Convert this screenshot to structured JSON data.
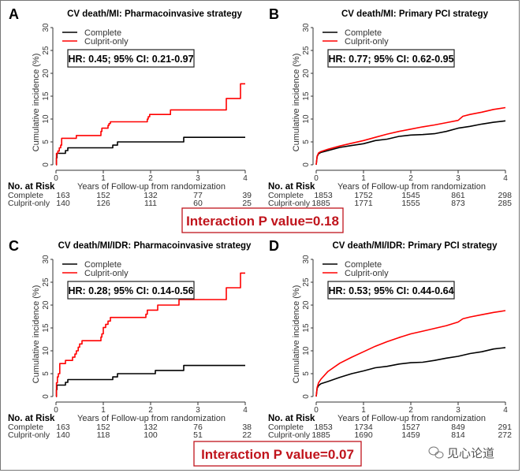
{
  "chart_data": [
    {
      "type": "line",
      "panel": "A",
      "title": "CV death/MI: Pharmacoinvasive strategy",
      "xlabel": "Years of Follow-up from randomization",
      "ylabel": "Cumulative incidence (%)",
      "xlim": [
        0,
        4
      ],
      "ylim": [
        0,
        30
      ],
      "xticks": [
        0,
        1,
        2,
        3,
        4
      ],
      "yticks": [
        0,
        5,
        10,
        15,
        20,
        25,
        30
      ],
      "step": true,
      "legend": [
        "Complete",
        "Culprit-only"
      ],
      "annotation": "HR: 0.45; 95% CI: 0.21-0.97",
      "series": [
        {
          "name": "Complete",
          "color": "#000000",
          "x": [
            0,
            0.01,
            0.02,
            0.15,
            0.2,
            0.25,
            1.2,
            1.3,
            2.7,
            4.0
          ],
          "y": [
            0,
            1.5,
            2.5,
            2.5,
            3.1,
            3.7,
            4.3,
            5.0,
            6.0,
            6.0
          ]
        },
        {
          "name": "Culprit-only",
          "color": "#ff0000",
          "x": [
            0,
            0.01,
            0.04,
            0.07,
            0.1,
            0.12,
            0.43,
            0.95,
            0.97,
            1.1,
            1.12,
            1.15,
            1.93,
            1.95,
            1.98,
            2.42,
            3.6,
            3.9,
            4.0
          ],
          "y": [
            0,
            2.5,
            3.0,
            3.7,
            4.3,
            5.8,
            6.4,
            7.3,
            8.0,
            8.6,
            9.0,
            9.4,
            10.0,
            10.5,
            11.0,
            12.0,
            14.5,
            17.7,
            17.7
          ]
        }
      ],
      "at_risk": {
        "header": "No. at Risk",
        "rows": [
          {
            "label": "Complete",
            "values": [
              163,
              152,
              132,
              77,
              39
            ]
          },
          {
            "label": "Culprit-only",
            "values": [
              140,
              126,
              111,
              60,
              25
            ]
          }
        ]
      }
    },
    {
      "type": "line",
      "panel": "B",
      "title": "CV death/MI: Primary PCI strategy",
      "xlabel": "Years of Follow-up from randomization",
      "ylabel": "Cumulative incidence (%)",
      "xlim": [
        0,
        4
      ],
      "ylim": [
        0,
        30
      ],
      "xticks": [
        0,
        1,
        2,
        3,
        4
      ],
      "yticks": [
        0,
        5,
        10,
        15,
        20,
        25,
        30
      ],
      "step": false,
      "legend": [
        "Complete",
        "Culprit-only"
      ],
      "annotation": "HR: 0.77; 95% CI: 0.62-0.95",
      "series": [
        {
          "name": "Complete",
          "color": "#000000",
          "x": [
            0,
            0.02,
            0.05,
            0.1,
            0.25,
            0.5,
            0.75,
            1.0,
            1.25,
            1.5,
            1.75,
            2.0,
            2.25,
            2.5,
            2.75,
            3.0,
            3.25,
            3.5,
            3.75,
            4.0
          ],
          "y": [
            0,
            1.8,
            2.4,
            2.7,
            3.1,
            3.8,
            4.2,
            4.6,
            5.3,
            5.6,
            6.2,
            6.5,
            6.6,
            6.8,
            7.3,
            8.0,
            8.4,
            8.9,
            9.3,
            9.6
          ]
        },
        {
          "name": "Culprit-only",
          "color": "#ff0000",
          "x": [
            0,
            0.02,
            0.05,
            0.1,
            0.25,
            0.5,
            0.75,
            1.0,
            1.25,
            1.5,
            1.75,
            2.0,
            2.25,
            2.5,
            2.75,
            3.0,
            3.1,
            3.25,
            3.5,
            3.75,
            4.0
          ],
          "y": [
            0,
            1.9,
            2.6,
            2.9,
            3.4,
            4.1,
            4.7,
            5.3,
            6.0,
            6.7,
            7.3,
            7.8,
            8.3,
            8.7,
            9.2,
            9.7,
            10.6,
            11.0,
            11.5,
            12.1,
            12.5
          ]
        }
      ],
      "at_risk": {
        "header": "No. at Risk",
        "rows": [
          {
            "label": "Complete",
            "values": [
              1853,
              1752,
              1545,
              861,
              298
            ]
          },
          {
            "label": "Culprit-only",
            "values": [
              1885,
              1771,
              1555,
              873,
              285
            ]
          }
        ]
      }
    },
    {
      "type": "line",
      "panel": "C",
      "title": "CV death/MI/IDR: Pharmacoinvasive strategy",
      "xlabel": "Years of Follow-up from randomization",
      "ylabel": "Cumulative incidence (%)",
      "xlim": [
        0,
        4
      ],
      "ylim": [
        0,
        30
      ],
      "xticks": [
        0,
        1,
        2,
        3,
        4
      ],
      "yticks": [
        0,
        5,
        10,
        15,
        20,
        25,
        30
      ],
      "step": true,
      "legend": [
        "Complete",
        "Culprit-only"
      ],
      "annotation": "HR: 0.28; 95% CI: 0.14-0.56",
      "series": [
        {
          "name": "Complete",
          "color": "#000000",
          "x": [
            0,
            0.01,
            0.02,
            0.15,
            0.2,
            0.25,
            1.2,
            1.3,
            2.1,
            2.7,
            4.0
          ],
          "y": [
            0,
            1.5,
            2.5,
            2.5,
            3.1,
            3.7,
            4.3,
            5.0,
            5.7,
            6.8,
            6.8
          ]
        },
        {
          "name": "Culprit-only",
          "color": "#ff0000",
          "x": [
            0,
            0.01,
            0.03,
            0.05,
            0.08,
            0.1,
            0.2,
            0.35,
            0.4,
            0.43,
            0.47,
            0.5,
            0.55,
            0.95,
            0.97,
            1.0,
            1.05,
            1.1,
            1.15,
            1.9,
            1.93,
            2.15,
            2.6,
            3.6,
            3.9,
            4.0
          ],
          "y": [
            0,
            3.0,
            4.3,
            5.0,
            7.2,
            7.2,
            7.9,
            8.6,
            9.3,
            10.0,
            10.8,
            11.5,
            12.2,
            13.0,
            13.7,
            15.1,
            15.8,
            16.5,
            17.3,
            18.0,
            18.9,
            20.0,
            21.2,
            23.8,
            27.0,
            27.0
          ]
        }
      ],
      "at_risk": {
        "header": "No. at Risk",
        "rows": [
          {
            "label": "Complete",
            "values": [
              163,
              152,
              132,
              76,
              38
            ]
          },
          {
            "label": "Culprit-only",
            "values": [
              140,
              118,
              100,
              51,
              22
            ]
          }
        ]
      }
    },
    {
      "type": "line",
      "panel": "D",
      "title": "CV death/MI/IDR: Primary PCI strategy",
      "xlabel": "Years of Follow-up from randomization",
      "ylabel": "Cumulative incidence (%)",
      "xlim": [
        0,
        4
      ],
      "ylim": [
        0,
        30
      ],
      "xticks": [
        0,
        1,
        2,
        3,
        4
      ],
      "yticks": [
        0,
        5,
        10,
        15,
        20,
        25,
        30
      ],
      "step": false,
      "legend": [
        "Complete",
        "Culprit-only"
      ],
      "annotation": "HR: 0.53; 95% CI: 0.44-0.64",
      "series": [
        {
          "name": "Complete",
          "color": "#000000",
          "x": [
            0,
            0.02,
            0.05,
            0.1,
            0.25,
            0.5,
            0.75,
            1.0,
            1.25,
            1.5,
            1.75,
            2.0,
            2.25,
            2.5,
            2.75,
            3.0,
            3.25,
            3.5,
            3.75,
            4.0
          ],
          "y": [
            0,
            1.8,
            2.4,
            2.8,
            3.3,
            4.2,
            5.0,
            5.6,
            6.3,
            6.6,
            7.1,
            7.4,
            7.5,
            7.9,
            8.4,
            8.8,
            9.4,
            9.8,
            10.4,
            10.7
          ]
        },
        {
          "name": "Culprit-only",
          "color": "#ff0000",
          "x": [
            0,
            0.02,
            0.05,
            0.1,
            0.25,
            0.5,
            0.75,
            1.0,
            1.25,
            1.5,
            1.75,
            2.0,
            2.25,
            2.5,
            2.75,
            3.0,
            3.1,
            3.25,
            3.5,
            3.75,
            4.0
          ],
          "y": [
            0,
            2.0,
            3.0,
            3.8,
            5.5,
            7.3,
            8.6,
            9.8,
            11.0,
            12.0,
            12.9,
            13.7,
            14.3,
            14.9,
            15.5,
            16.3,
            17.0,
            17.4,
            17.9,
            18.4,
            18.8
          ]
        }
      ],
      "at_risk": {
        "header": "No. at Risk",
        "rows": [
          {
            "label": "Complete",
            "values": [
              1853,
              1734,
              1527,
              849,
              291
            ]
          },
          {
            "label": "Culprit-only",
            "values": [
              1885,
              1690,
              1459,
              814,
              272
            ]
          }
        ]
      }
    }
  ],
  "interactions": [
    {
      "text": "Interaction P value=0.18"
    },
    {
      "text": "Interaction P value=0.07"
    }
  ],
  "watermark": {
    "icon": "wechat-icon",
    "text": "见心论道"
  },
  "colors": {
    "complete": "#000000",
    "culprit_only": "#ff0000",
    "interaction": "#c0141c"
  }
}
